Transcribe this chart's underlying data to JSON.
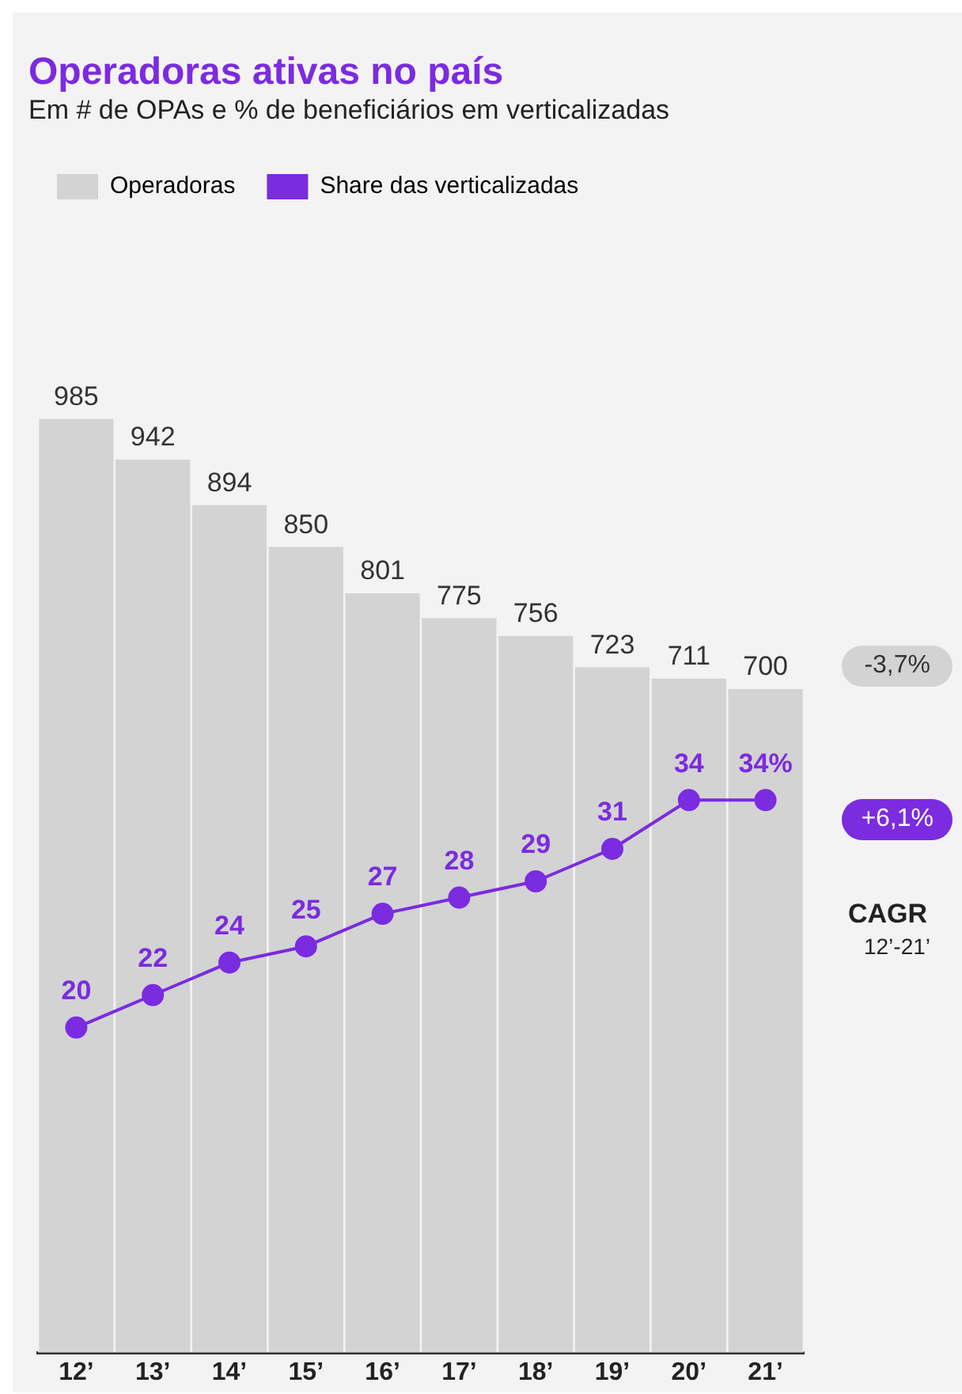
{
  "chart_data": {
    "type": "bar",
    "title": "Operadoras ativas no país",
    "subtitle": "Em # de OPAs e % de beneficiários em verticalizadas",
    "categories": [
      "12’",
      "13’",
      "14’",
      "15’",
      "16’",
      "17’",
      "18’",
      "19’",
      "20’",
      "21’"
    ],
    "series": [
      {
        "name": "Operadoras",
        "color": "#d3d3d3",
        "values": [
          985,
          942,
          894,
          850,
          801,
          775,
          756,
          723,
          711,
          700
        ]
      },
      {
        "name": "Share das verticalizadas",
        "type": "line",
        "axis": "y2",
        "color": "#7b2be0",
        "values": [
          20,
          22,
          24,
          25,
          27,
          28,
          29,
          31,
          34,
          34
        ],
        "value_labels": [
          "20",
          "22",
          "24",
          "25",
          "27",
          "28",
          "29",
          "31",
          "34",
          "34%"
        ]
      }
    ],
    "tick_labels": "x",
    "grid": false,
    "legend": "top left",
    "marker": "circle",
    "data_labels": true,
    "annotations": [
      "-3,7%",
      "+6,1%",
      "CAGR",
      "12’-21’"
    ]
  }
}
